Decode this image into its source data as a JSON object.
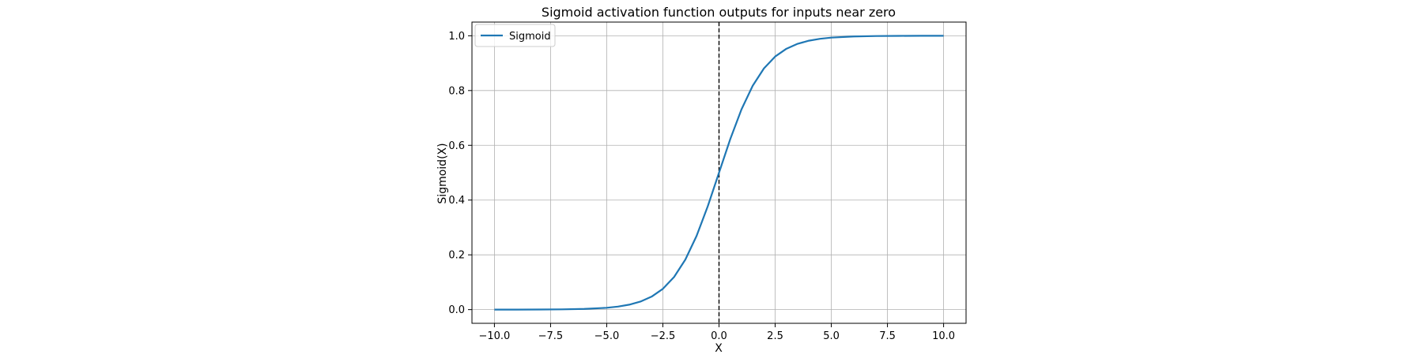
{
  "chart_data": {
    "type": "line",
    "title": "Sigmoid activation function outputs for inputs near zero",
    "xlabel": "X",
    "ylabel": "Sigmoid(X)",
    "xlim": [
      -11.0,
      11.0
    ],
    "ylim": [
      -0.05,
      1.05
    ],
    "xticks": [
      -10.0,
      -7.5,
      -5.0,
      -2.5,
      0.0,
      2.5,
      5.0,
      7.5,
      10.0
    ],
    "xtick_labels": [
      "−10.0",
      "−7.5",
      "−5.0",
      "−2.5",
      "0.0",
      "2.5",
      "5.0",
      "7.5",
      "10.0"
    ],
    "yticks": [
      0.0,
      0.2,
      0.4,
      0.6,
      0.8,
      1.0
    ],
    "ytick_labels": [
      "0.0",
      "0.2",
      "0.4",
      "0.6",
      "0.8",
      "1.0"
    ],
    "grid": true,
    "legend": {
      "position": "top-left",
      "entries": [
        "Sigmoid"
      ]
    },
    "reference_line": {
      "orientation": "vertical",
      "x": 0.0,
      "style": "dashed",
      "color": "#000000"
    },
    "series": [
      {
        "name": "Sigmoid",
        "color": "#1f77b4",
        "function": "1/(1+exp(-x))",
        "x": [
          -10,
          -9,
          -8,
          -7,
          -6,
          -5,
          -4.5,
          -4,
          -3.5,
          -3,
          -2.5,
          -2,
          -1.5,
          -1,
          -0.5,
          0,
          0.5,
          1,
          1.5,
          2,
          2.5,
          3,
          3.5,
          4,
          4.5,
          5,
          6,
          7,
          8,
          9,
          10
        ],
        "y": [
          5e-05,
          0.00012,
          0.00034,
          0.00091,
          0.00247,
          0.00669,
          0.01099,
          0.01799,
          0.02931,
          0.04743,
          0.07586,
          0.1192,
          0.18243,
          0.26894,
          0.37754,
          0.5,
          0.62246,
          0.73106,
          0.81757,
          0.8808,
          0.92414,
          0.95257,
          0.97069,
          0.98201,
          0.98901,
          0.99331,
          0.99753,
          0.99909,
          0.99966,
          0.99988,
          0.99995
        ]
      }
    ]
  }
}
